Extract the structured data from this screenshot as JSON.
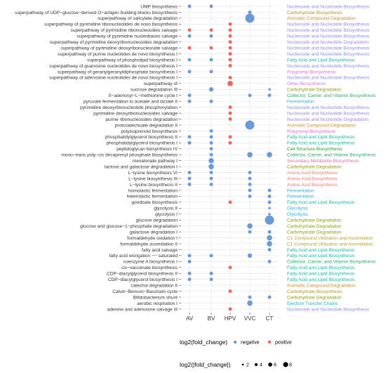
{
  "chart_data": {
    "type": "scatter",
    "subtype": "dot-plot",
    "x_categories": [
      "AV",
      "BV",
      "HPV",
      "VVC",
      "CT"
    ],
    "pathways": [
      {
        "name": "UMP biosynthesis",
        "category": "Nucleoside and Nucleotide Biosynthesis",
        "points": [
          {
            "x": "AV",
            "dir": "negative",
            "size": 2
          },
          {
            "x": "BV",
            "dir": "negative",
            "size": 2
          }
        ]
      },
      {
        "name": "superpathway of UDP−glucose−derived O−antigen building blocks biosynthesis",
        "category": "Carbohydrate Biosynthesis",
        "points": [
          {
            "x": "VVC",
            "dir": "negative",
            "size": 2
          }
        ]
      },
      {
        "name": "superpathway of salicylate degradation",
        "category": "Aromatic Compound Degradation",
        "points": [
          {
            "x": "VVC",
            "dir": "negative",
            "size": 8
          }
        ]
      },
      {
        "name": "superpathway of pyrimidine ribonucleotides de novo biosynthesis",
        "category": "Nucleoside and Nucleotide Biosynthesis",
        "points": [
          {
            "x": "HPV",
            "dir": "positive",
            "size": 2
          }
        ]
      },
      {
        "name": "superpathway of pyrimidine ribonucleosides salvage",
        "category": "Nucleoside and Nucleotide Biosynthesis",
        "points": [
          {
            "x": "AV",
            "dir": "positive",
            "size": 2
          },
          {
            "x": "BV",
            "dir": "positive",
            "size": 2
          },
          {
            "x": "HPV",
            "dir": "positive",
            "size": 2
          }
        ]
      },
      {
        "name": "superpathway of pyrimidine nucleobases salvage",
        "category": "Nucleoside and Nucleotide Biosynthesis",
        "points": [
          {
            "x": "AV",
            "dir": "negative",
            "size": 2
          },
          {
            "x": "BV",
            "dir": "negative",
            "size": 2
          },
          {
            "x": "HPV",
            "dir": "positive",
            "size": 2
          }
        ]
      },
      {
        "name": "superpathway of pyrimidine deoxyribonucleosides degradation",
        "category": "Nucleoside and Nucleotide Degradation",
        "points": [
          {
            "x": "HPV",
            "dir": "positive",
            "size": 2
          }
        ]
      },
      {
        "name": "superpathway of pyrimidine deoxyribonucleoside salvage",
        "category": "Nucleoside and Nucleotide Biosynthesis",
        "points": [
          {
            "x": "AV",
            "dir": "positive",
            "size": 2
          },
          {
            "x": "BV",
            "dir": "positive",
            "size": 2
          },
          {
            "x": "HPV",
            "dir": "positive",
            "size": 2
          }
        ]
      },
      {
        "name": "superpathway of purine nucleotides de novo biosynthesis I",
        "category": "Nucleoside and Nucleotide Biosynthesis",
        "points": [
          {
            "x": "HPV",
            "dir": "positive",
            "size": 2
          }
        ]
      },
      {
        "name": "superpathway of phospholipid biosynthesis I",
        "category": "Fatty Acid and Lipid Biosynthesis",
        "points": [
          {
            "x": "AV",
            "dir": "negative",
            "size": 2
          },
          {
            "x": "BV",
            "dir": "negative",
            "size": 2
          },
          {
            "x": "HPV",
            "dir": "positive",
            "size": 2
          }
        ]
      },
      {
        "name": "superpathway of guanosine nucleotides de novo biosynthesis I",
        "category": "Nucleoside and Nucleotide Biosynthesis",
        "points": [
          {
            "x": "HPV",
            "dir": "positive",
            "size": 2
          }
        ]
      },
      {
        "name": "superpathway of geranylgeranyldiphosphate biosynthesis I",
        "category": "Polyprenyl Biosynthesis",
        "points": [
          {
            "x": "AV",
            "dir": "negative",
            "size": 2
          },
          {
            "x": "BV",
            "dir": "negative",
            "size": 2
          }
        ]
      },
      {
        "name": "superpathway of adenosine nucleotides de novo biosynthesis I",
        "category": "Nucleoside and Nucleotide Biosynthesis",
        "points": [
          {
            "x": "HPV",
            "dir": "positive",
            "size": 2
          }
        ]
      },
      {
        "name": "superpathway of",
        "category": "Other Biosynthesis",
        "points": [
          {
            "x": "HPV",
            "dir": "positive",
            "size": 4
          }
        ]
      },
      {
        "name": "sucrose degradation III",
        "category": "Carbohydrate Degradation",
        "points": [
          {
            "x": "BV",
            "dir": "negative",
            "size": 3
          },
          {
            "x": "CT",
            "dir": "negative",
            "size": 1
          }
        ]
      },
      {
        "name": "S−adenosyl−L−methionine cycle I",
        "category": "Collector, Carrier, and Vitamin Biosynthesis",
        "points": [
          {
            "x": "AV",
            "dir": "negative",
            "size": 2
          },
          {
            "x": "VVC",
            "dir": "negative",
            "size": 2
          },
          {
            "x": "CT",
            "dir": "negative",
            "size": 2
          }
        ]
      },
      {
        "name": "pyruvate fermentation to acetate and lactate II",
        "category": "Fermentation",
        "points": [
          {
            "x": "AV",
            "dir": "negative",
            "size": 2
          },
          {
            "x": "BV",
            "dir": "negative",
            "size": 2
          }
        ]
      },
      {
        "name": "pyrimidine deoxyribonucleotide phosphorylation",
        "category": "Nucleoside and Nucleotide Biosynthesis",
        "points": [
          {
            "x": "HPV",
            "dir": "positive",
            "size": 2
          }
        ]
      },
      {
        "name": "pyrimidine deoxyribonucleosides salvage",
        "category": "Nucleoside and Nucleotide Biosynthesis",
        "points": [
          {
            "x": "HPV",
            "dir": "positive",
            "size": 2
          }
        ]
      },
      {
        "name": "purine ribonucleosides degradation",
        "category": "Nucleoside and Nucleotide Degradation",
        "points": [
          {
            "x": "HPV",
            "dir": "positive",
            "size": 2
          }
        ]
      },
      {
        "name": "protocatechuate degradation II",
        "category": "Aromatic Compound Degradation",
        "points": [
          {
            "x": "VVC",
            "dir": "negative",
            "size": 8
          }
        ]
      },
      {
        "name": "polyisoprenoid biosynthesis",
        "category": "Polyprenyl Biosynthesis",
        "points": [
          {
            "x": "BV",
            "dir": "negative",
            "size": 2
          }
        ]
      },
      {
        "name": "phosphatidylglycerol biosynthesis II",
        "category": "Fatty Acid and Lipid Biosynthesis",
        "points": [
          {
            "x": "AV",
            "dir": "negative",
            "size": 2
          },
          {
            "x": "BV",
            "dir": "negative",
            "size": 2
          },
          {
            "x": "HPV",
            "dir": "positive",
            "size": 2
          }
        ]
      },
      {
        "name": "phosphatidylglycerol biosynthesis I",
        "category": "Fatty Acid and Lipid Biosynthesis",
        "points": [
          {
            "x": "AV",
            "dir": "negative",
            "size": 2
          },
          {
            "x": "BV",
            "dir": "negative",
            "size": 2
          },
          {
            "x": "HPV",
            "dir": "positive",
            "size": 2
          }
        ]
      },
      {
        "name": "peptidoglycan biosynthesis IV",
        "category": "Cell Structure Biosynthesis",
        "points": [
          {
            "x": "BV",
            "dir": "negative",
            "size": 2
          }
        ]
      },
      {
        "name": "mono−trans poly−cis decaprenyl phosphate biosynthesis",
        "category": "Collector, Carrier, and Vitamin Biosynthesis",
        "points": [
          {
            "x": "BV",
            "dir": "negative",
            "size": 2
          },
          {
            "x": "VVC",
            "dir": "negative",
            "size": 4
          },
          {
            "x": "CT",
            "dir": "negative",
            "size": 4
          }
        ]
      },
      {
        "name": "mevalonate pathway I",
        "category": "Secondary Metabolite Biosynthesis",
        "points": [
          {
            "x": "BV",
            "dir": "negative",
            "size": 4
          }
        ]
      },
      {
        "name": "lactose and galactose degradation I",
        "category": "Carbohydrate Degradation",
        "points": [
          {
            "x": "BV",
            "dir": "negative",
            "size": 4
          }
        ]
      },
      {
        "name": "L−lysine biosynthesis VI",
        "category": "Amino Acid Biosynthesis",
        "points": [
          {
            "x": "AV",
            "dir": "negative",
            "size": 2
          },
          {
            "x": "BV",
            "dir": "negative",
            "size": 2
          },
          {
            "x": "VVC",
            "dir": "negative",
            "size": 2
          }
        ]
      },
      {
        "name": "L−lysine biosynthesis III",
        "category": "Amino Acid Biosynthesis",
        "points": [
          {
            "x": "AV",
            "dir": "negative",
            "size": 2
          },
          {
            "x": "BV",
            "dir": "negative",
            "size": 2
          },
          {
            "x": "VVC",
            "dir": "negative",
            "size": 2
          }
        ]
      },
      {
        "name": "L−lysine biosynthesis II",
        "category": "Amino Acid Biosynthesis",
        "points": [
          {
            "x": "AV",
            "dir": "negative",
            "size": 2
          },
          {
            "x": "BV",
            "dir": "negative",
            "size": 2
          },
          {
            "x": "VVC",
            "dir": "negative",
            "size": 2
          }
        ]
      },
      {
        "name": "homolactic fermentation",
        "category": "Fermentation",
        "points": [
          {
            "x": "VVC",
            "dir": "negative",
            "size": 2
          },
          {
            "x": "CT",
            "dir": "negative",
            "size": 2
          }
        ]
      },
      {
        "name": "heterolactic fermentation",
        "category": "Fermentation",
        "points": [
          {
            "x": "VVC",
            "dir": "negative",
            "size": 2
          },
          {
            "x": "CT",
            "dir": "negative",
            "size": 2
          }
        ]
      },
      {
        "name": "gondoate biosynthesis",
        "category": "Fatty Acid and Lipid Biosynthesis",
        "points": [
          {
            "x": "HPV",
            "dir": "positive",
            "size": 2
          },
          {
            "x": "CT",
            "dir": "negative",
            "size": 2
          }
        ]
      },
      {
        "name": "glycolysis II",
        "category": "Glycolysis",
        "points": [
          {
            "x": "CT",
            "dir": "negative",
            "size": 1
          }
        ]
      },
      {
        "name": "glycolysis I",
        "category": "Glycolysis",
        "points": [
          {
            "x": "CT",
            "dir": "negative",
            "size": 1
          }
        ]
      },
      {
        "name": "glucose degradation",
        "category": "Carbohydrate Degradation",
        "points": [
          {
            "x": "CT",
            "dir": "negative",
            "size": 8
          }
        ]
      },
      {
        "name": "glucose and glucose−1−phosphate degradation",
        "category": "Carbohydrate Degradation",
        "points": [
          {
            "x": "VVC",
            "dir": "negative",
            "size": 4
          }
        ]
      },
      {
        "name": "galactose degradation I",
        "category": "Carbohydrate Degradation",
        "points": [
          {
            "x": "VVC",
            "dir": "negative",
            "size": 2
          },
          {
            "x": "CT",
            "dir": "negative",
            "size": 2
          }
        ]
      },
      {
        "name": "formaldehyde oxidation I",
        "category": "C1 Compound Utilization and Assimilation",
        "points": [
          {
            "x": "CT",
            "dir": "negative",
            "size": 4
          }
        ]
      },
      {
        "name": "formaldehyde assimilation II",
        "category": "C1 Compound Utilization and Assimilation",
        "points": [
          {
            "x": "CT",
            "dir": "negative",
            "size": 4
          }
        ]
      },
      {
        "name": "fatty acid salvage",
        "category": "Fatty Acid and Lipid Biosynthesis",
        "points": [
          {
            "x": "CT",
            "dir": "negative",
            "size": 2
          }
        ]
      },
      {
        "name": "fatty acid elongation −− saturated",
        "category": "Fatty Acid and Lipid Biosynthesis",
        "points": [
          {
            "x": "AV",
            "dir": "negative",
            "size": 2
          },
          {
            "x": "BV",
            "dir": "negative",
            "size": 2
          },
          {
            "x": "VVC",
            "dir": "negative",
            "size": 3
          }
        ]
      },
      {
        "name": "coenzyme A biosynthesis I",
        "category": "Collector, Carrier, and Vitamin Biosynthesis",
        "points": [
          {
            "x": "AV",
            "dir": "negative",
            "size": 2
          },
          {
            "x": "CT",
            "dir": "negative",
            "size": 2
          }
        ]
      },
      {
        "name": "cis−vaccenate biosynthesis",
        "category": "Fatty Acid and Lipid Biosynthesis",
        "points": [
          {
            "x": "HPV",
            "dir": "positive",
            "size": 2
          }
        ]
      },
      {
        "name": "CDP−diacylglycerol biosynthesis II",
        "category": "Fatty Acid and Lipid Biosynthesis",
        "points": [
          {
            "x": "AV",
            "dir": "negative",
            "size": 2
          },
          {
            "x": "BV",
            "dir": "negative",
            "size": 2
          }
        ]
      },
      {
        "name": "CDP−diacylglycerol biosynthesis I",
        "category": "Fatty Acid and Lipid Biosynthesis",
        "points": [
          {
            "x": "AV",
            "dir": "negative",
            "size": 2
          },
          {
            "x": "BV",
            "dir": "negative",
            "size": 2
          }
        ]
      },
      {
        "name": "catechol degradation II",
        "category": "Aromatic Compound Degradation",
        "points": []
      },
      {
        "name": "Calvin−Benson−Bassham cycle",
        "category": "Carbohydrate Biosynthesis",
        "points": [
          {
            "x": "HPV",
            "dir": "positive",
            "size": 2
          }
        ]
      },
      {
        "name": "Bifidobacterium shunt",
        "category": "Carbohydrate Degradation",
        "points": [
          {
            "x": "VVC",
            "dir": "negative",
            "size": 2
          },
          {
            "x": "CT",
            "dir": "negative",
            "size": 2
          }
        ]
      },
      {
        "name": "aerobic respiration I",
        "category": "Electron Transfer Chains",
        "points": [
          {
            "x": "VVC",
            "dir": "negative",
            "size": 4
          }
        ]
      },
      {
        "name": "adenine and adenosine salvage III",
        "category": "Nucleoside and Nucleotide Biosynthesis",
        "points": [
          {
            "x": "HPV",
            "dir": "positive",
            "size": 2
          }
        ]
      }
    ],
    "category_colors": {
      "Nucleoside and Nucleotide Biosynthesis": "#8e8ee6",
      "Carbohydrate Biosynthesis": "#b0922c",
      "Aromatic Compound Degradation": "#c8902c",
      "Nucleoside and Nucleotide Degradation": "#a584e0",
      "Fatty Acid and Lipid Biosynthesis": "#1ab6a4",
      "Polyprenyl Biosynthesis": "#e26fd8",
      "Other Biosynthesis": "#d676e2",
      "Carbohydrate Degradation": "#8c9e10",
      "Collector, Carrier, and Vitamin Biosynthesis": "#2ca86a",
      "Fermentation": "#36a8e0",
      "Cell Structure Biosynthesis": "#2aa02a",
      "Secondary Metabolite Biosynthesis": "#ee6aa8",
      "Amino Acid Biosynthesis": "#f07a6c",
      "Glycolysis": "#24b2e6",
      "C1 Compound Utilization and Assimilation": "#b2a626",
      "Electron Transfer Chains": "#1ab6cc"
    },
    "colors": {
      "negative": "#6a9bd8",
      "positive": "#e8675f"
    },
    "legend": {
      "color_title": "log2(fold_change)",
      "color_entries": [
        "negative",
        "positive"
      ],
      "size_title": "log2(|fold_change|)",
      "size_entries": [
        2,
        4,
        6,
        8
      ],
      "placement": "bottom"
    },
    "grid": true
  }
}
